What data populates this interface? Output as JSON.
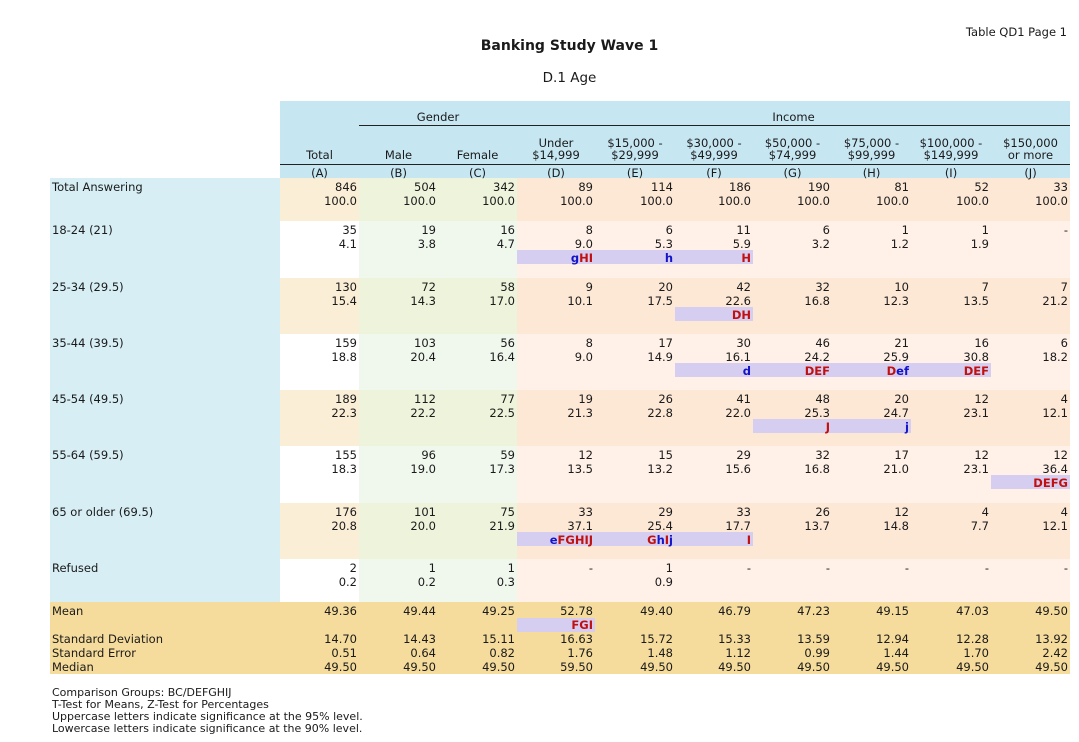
{
  "page_info": "Table QD1 Page 1",
  "title": "Banking Study Wave 1",
  "subtitle": "D.1  Age",
  "groups": {
    "gender": "Gender",
    "income": "Income"
  },
  "columns": [
    {
      "h1": "",
      "h2": "Total",
      "letter": "(A)"
    },
    {
      "h1": "",
      "h2": "Male",
      "letter": "(B)"
    },
    {
      "h1": "",
      "h2": "Female",
      "letter": "(C)"
    },
    {
      "h1": "Under",
      "h2": "$14,999",
      "letter": "(D)"
    },
    {
      "h1": "$15,000 -",
      "h2": "$29,999",
      "letter": "(E)"
    },
    {
      "h1": "$30,000 -",
      "h2": "$49,999",
      "letter": "(F)"
    },
    {
      "h1": "$50,000 -",
      "h2": "$74,999",
      "letter": "(G)"
    },
    {
      "h1": "$75,000 -",
      "h2": "$99,999",
      "letter": "(H)"
    },
    {
      "h1": "$100,000 -",
      "h2": "$149,999",
      "letter": "(I)"
    },
    {
      "h1": "$150,000",
      "h2": "or more",
      "letter": "(J)"
    }
  ],
  "rows": [
    {
      "label": "Total Answering",
      "counts": [
        "846",
        "504",
        "342",
        "89",
        "114",
        "186",
        "190",
        "81",
        "52",
        "33"
      ],
      "pcts": [
        "100.0",
        "100.0",
        "100.0",
        "100.0",
        "100.0",
        "100.0",
        "100.0",
        "100.0",
        "100.0",
        "100.0"
      ],
      "sig": [
        "",
        "",
        "",
        "",
        "",
        "",
        "",
        "",
        "",
        ""
      ]
    },
    {
      "label": "18-24 (21)",
      "counts": [
        "35",
        "19",
        "16",
        "8",
        "6",
        "11",
        "6",
        "1",
        "1",
        "-"
      ],
      "pcts": [
        "4.1",
        "3.8",
        "4.7",
        "9.0",
        "5.3",
        "5.9",
        "3.2",
        "1.2",
        "1.9",
        ""
      ],
      "sig": [
        "",
        "",
        "",
        "gHI",
        "h",
        "H",
        "",
        "",
        "",
        ""
      ]
    },
    {
      "label": "25-34 (29.5)",
      "counts": [
        "130",
        "72",
        "58",
        "9",
        "20",
        "42",
        "32",
        "10",
        "7",
        "7"
      ],
      "pcts": [
        "15.4",
        "14.3",
        "17.0",
        "10.1",
        "17.5",
        "22.6",
        "16.8",
        "12.3",
        "13.5",
        "21.2"
      ],
      "sig": [
        "",
        "",
        "",
        "",
        "",
        "DH",
        "",
        "",
        "",
        ""
      ]
    },
    {
      "label": "35-44 (39.5)",
      "counts": [
        "159",
        "103",
        "56",
        "8",
        "17",
        "30",
        "46",
        "21",
        "16",
        "6"
      ],
      "pcts": [
        "18.8",
        "20.4",
        "16.4",
        "9.0",
        "14.9",
        "16.1",
        "24.2",
        "25.9",
        "30.8",
        "18.2"
      ],
      "sig": [
        "",
        "",
        "",
        "",
        "",
        "d",
        "DEF",
        "Def",
        "DEF",
        ""
      ]
    },
    {
      "label": "45-54 (49.5)",
      "counts": [
        "189",
        "112",
        "77",
        "19",
        "26",
        "41",
        "48",
        "20",
        "12",
        "4"
      ],
      "pcts": [
        "22.3",
        "22.2",
        "22.5",
        "21.3",
        "22.8",
        "22.0",
        "25.3",
        "24.7",
        "23.1",
        "12.1"
      ],
      "sig": [
        "",
        "",
        "",
        "",
        "",
        "",
        "J",
        "j",
        "",
        ""
      ]
    },
    {
      "label": "55-64 (59.5)",
      "counts": [
        "155",
        "96",
        "59",
        "12",
        "15",
        "29",
        "32",
        "17",
        "12",
        "12"
      ],
      "pcts": [
        "18.3",
        "19.0",
        "17.3",
        "13.5",
        "13.2",
        "15.6",
        "16.8",
        "21.0",
        "23.1",
        "36.4"
      ],
      "sig": [
        "",
        "",
        "",
        "",
        "",
        "",
        "",
        "",
        "",
        "DEFG"
      ]
    },
    {
      "label": "65 or older (69.5)",
      "counts": [
        "176",
        "101",
        "75",
        "33",
        "29",
        "33",
        "26",
        "12",
        "4",
        "4"
      ],
      "pcts": [
        "20.8",
        "20.0",
        "21.9",
        "37.1",
        "25.4",
        "17.7",
        "13.7",
        "14.8",
        "7.7",
        "12.1"
      ],
      "sig": [
        "",
        "",
        "",
        "eFGHIJ",
        "GhIj",
        "I",
        "",
        "",
        "",
        ""
      ]
    },
    {
      "label": "Refused",
      "counts": [
        "2",
        "1",
        "1",
        "-",
        "1",
        "-",
        "-",
        "-",
        "-",
        "-"
      ],
      "pcts": [
        "0.2",
        "0.2",
        "0.3",
        "",
        "0.9",
        "",
        "",
        "",
        "",
        ""
      ],
      "sig": [
        "",
        "",
        "",
        "",
        "",
        "",
        "",
        "",
        "",
        ""
      ]
    }
  ],
  "stats": [
    {
      "label": "Mean",
      "values": [
        "49.36",
        "49.44",
        "49.25",
        "52.78",
        "49.40",
        "46.79",
        "47.23",
        "49.15",
        "47.03",
        "49.50"
      ],
      "sig": [
        "",
        "",
        "",
        "FGI",
        "",
        "",
        "",
        "",
        "",
        ""
      ]
    },
    {
      "label": "Standard Deviation",
      "values": [
        "14.70",
        "14.43",
        "15.11",
        "16.63",
        "15.72",
        "15.33",
        "13.59",
        "12.94",
        "12.28",
        "13.92"
      ]
    },
    {
      "label": "Standard Error",
      "values": [
        "0.51",
        "0.64",
        "0.82",
        "1.76",
        "1.48",
        "1.12",
        "0.99",
        "1.44",
        "1.70",
        "2.42"
      ]
    },
    {
      "label": "Median",
      "values": [
        "49.50",
        "49.50",
        "49.50",
        "59.50",
        "49.50",
        "49.50",
        "49.50",
        "49.50",
        "49.50",
        "49.50"
      ]
    }
  ],
  "footnotes": [
    "Comparison Groups: BC/DEFGHIJ",
    "T-Test for Means, Z-Test for Percentages",
    "Uppercase letters indicate significance at the 95% level.",
    "Lowercase letters indicate significance at the 90% level."
  ],
  "colors": {
    "header": "#c6e6f2",
    "stub": "#d6eef4",
    "total_col_odd": "#fbeed6",
    "gender_col_odd": "#eef4dc",
    "income_col_odd": "#fde8d6",
    "gender_col_even": "#f0f8ee",
    "income_col_even": "#fff1e8",
    "sig_highlight": "#d6cef0",
    "sig_upper": "#c01010",
    "sig_lower": "#1414c8",
    "stats": "#f6dc9c"
  }
}
